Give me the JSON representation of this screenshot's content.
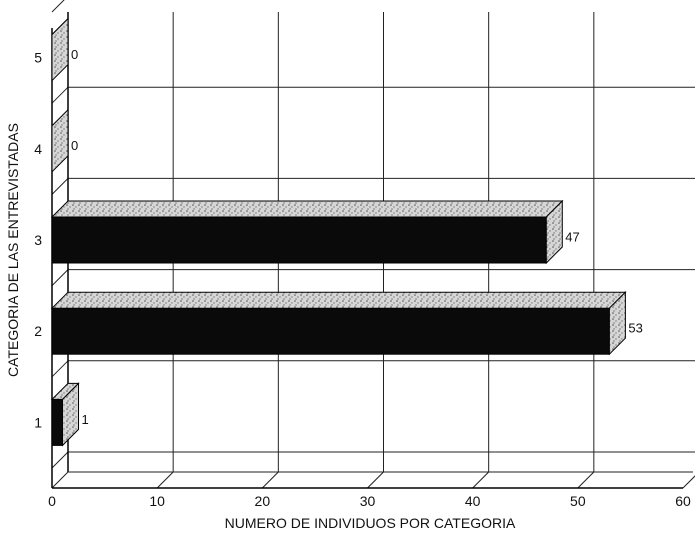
{
  "chart_data": {
    "type": "bar",
    "orientation": "horizontal",
    "style": "3d",
    "categories": [
      "1",
      "2",
      "3",
      "4",
      "5"
    ],
    "values": [
      1,
      53,
      47,
      0,
      0
    ],
    "data_labels": [
      "1",
      "53",
      "47",
      "0",
      "0"
    ],
    "xlabel": "NUMERO DE INDIVIDUOS POR CATEGORIA",
    "ylabel": "CATEGORIA DE LAS ENTREVISTADAS",
    "xlim": [
      0,
      60
    ],
    "xticks": [
      "0",
      "10",
      "20",
      "30",
      "40",
      "50",
      "60"
    ],
    "grid": true,
    "colors": {
      "bar_front": "#0a0a0a",
      "bar_top": "#c8c8c8",
      "bar_side": "#dcdcdc",
      "grid": "#222222"
    }
  }
}
